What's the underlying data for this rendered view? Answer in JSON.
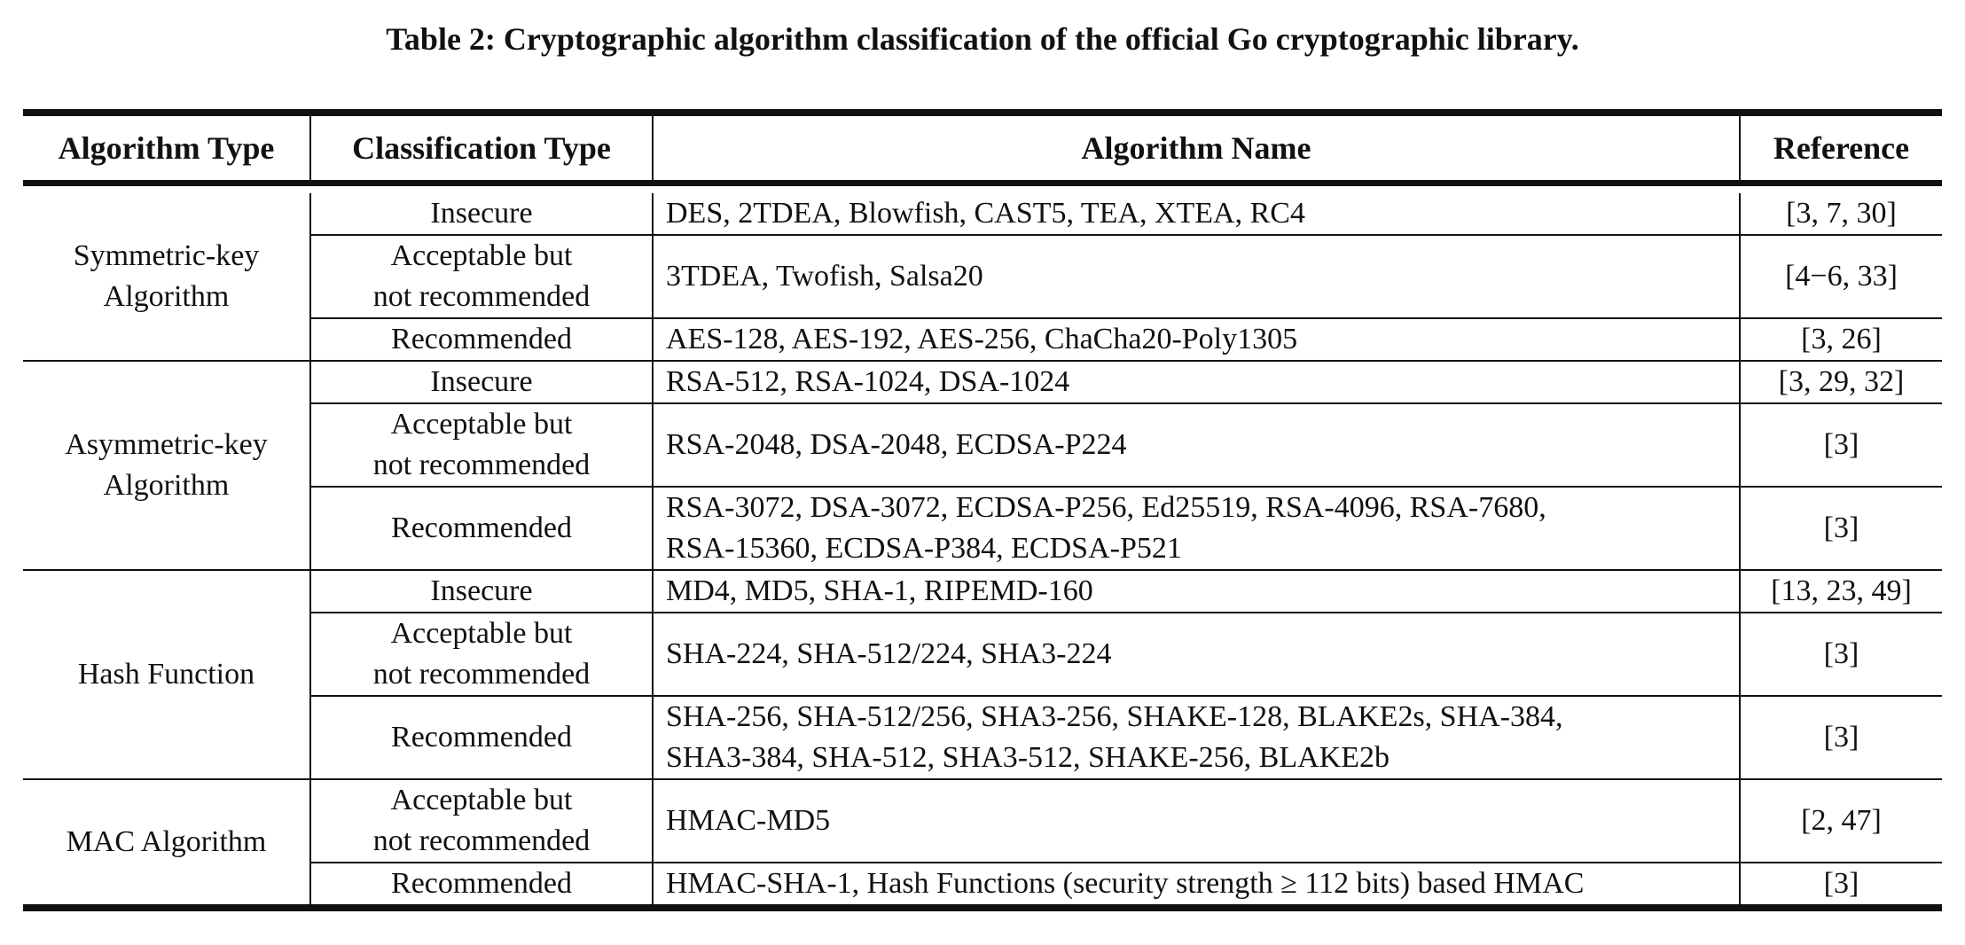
{
  "caption": "Table 2: Cryptographic algorithm classification of the official Go cryptographic library.",
  "headers": {
    "algorithm_type": "Algorithm Type",
    "classification_type": "Classification Type",
    "algorithm_name": "Algorithm Name",
    "reference": "Reference"
  },
  "groups": [
    {
      "type_line1": "Symmetric-key",
      "type_line2": "Algorithm",
      "rows": [
        {
          "cls1": "Insecure",
          "cls2": "",
          "name1": "DES, 2TDEA, Blowfish, CAST5, TEA, XTEA, RC4",
          "name2": "",
          "ref": "[3, 7, 30]"
        },
        {
          "cls1": "Acceptable but",
          "cls2": "not recommended",
          "name1": "3TDEA, Twofish, Salsa20",
          "name2": "",
          "ref": "[4−6, 33]"
        },
        {
          "cls1": "Recommended",
          "cls2": "",
          "name1": "AES-128, AES-192, AES-256, ChaCha20-Poly1305",
          "name2": "",
          "ref": "[3, 26]"
        }
      ]
    },
    {
      "type_line1": "Asymmetric-key",
      "type_line2": "Algorithm",
      "rows": [
        {
          "cls1": "Insecure",
          "cls2": "",
          "name1": "RSA-512, RSA-1024, DSA-1024",
          "name2": "",
          "ref": "[3, 29, 32]"
        },
        {
          "cls1": "Acceptable but",
          "cls2": "not recommended",
          "name1": "RSA-2048, DSA-2048, ECDSA-P224",
          "name2": "",
          "ref": "[3]"
        },
        {
          "cls1": "Recommended",
          "cls2": "",
          "name1": "RSA-3072, DSA-3072, ECDSA-P256, Ed25519, RSA-4096, RSA-7680,",
          "name2": "RSA-15360, ECDSA-P384, ECDSA-P521",
          "ref": "[3]"
        }
      ]
    },
    {
      "type_line1": "Hash Function",
      "type_line2": "",
      "rows": [
        {
          "cls1": "Insecure",
          "cls2": "",
          "name1": "MD4, MD5, SHA-1, RIPEMD-160",
          "name2": "",
          "ref": "[13, 23, 49]"
        },
        {
          "cls1": "Acceptable but",
          "cls2": "not recommended",
          "name1": "SHA-224, SHA-512/224, SHA3-224",
          "name2": "",
          "ref": "[3]"
        },
        {
          "cls1": "Recommended",
          "cls2": "",
          "name1": "SHA-256, SHA-512/256, SHA3-256, SHAKE-128, BLAKE2s, SHA-384,",
          "name2": "SHA3-384, SHA-512, SHA3-512, SHAKE-256, BLAKE2b",
          "ref": "[3]"
        }
      ]
    },
    {
      "type_line1": "MAC Algorithm",
      "type_line2": "",
      "rows": [
        {
          "cls1": "Acceptable but",
          "cls2": "not recommended",
          "name1": "HMAC-MD5",
          "name2": "",
          "ref": "[2, 47]"
        },
        {
          "cls1": "Recommended",
          "cls2": "",
          "name1": "HMAC-SHA-1, Hash Functions (security strength ≥ 112 bits) based HMAC",
          "name2": "",
          "ref": "[3]"
        }
      ]
    }
  ]
}
